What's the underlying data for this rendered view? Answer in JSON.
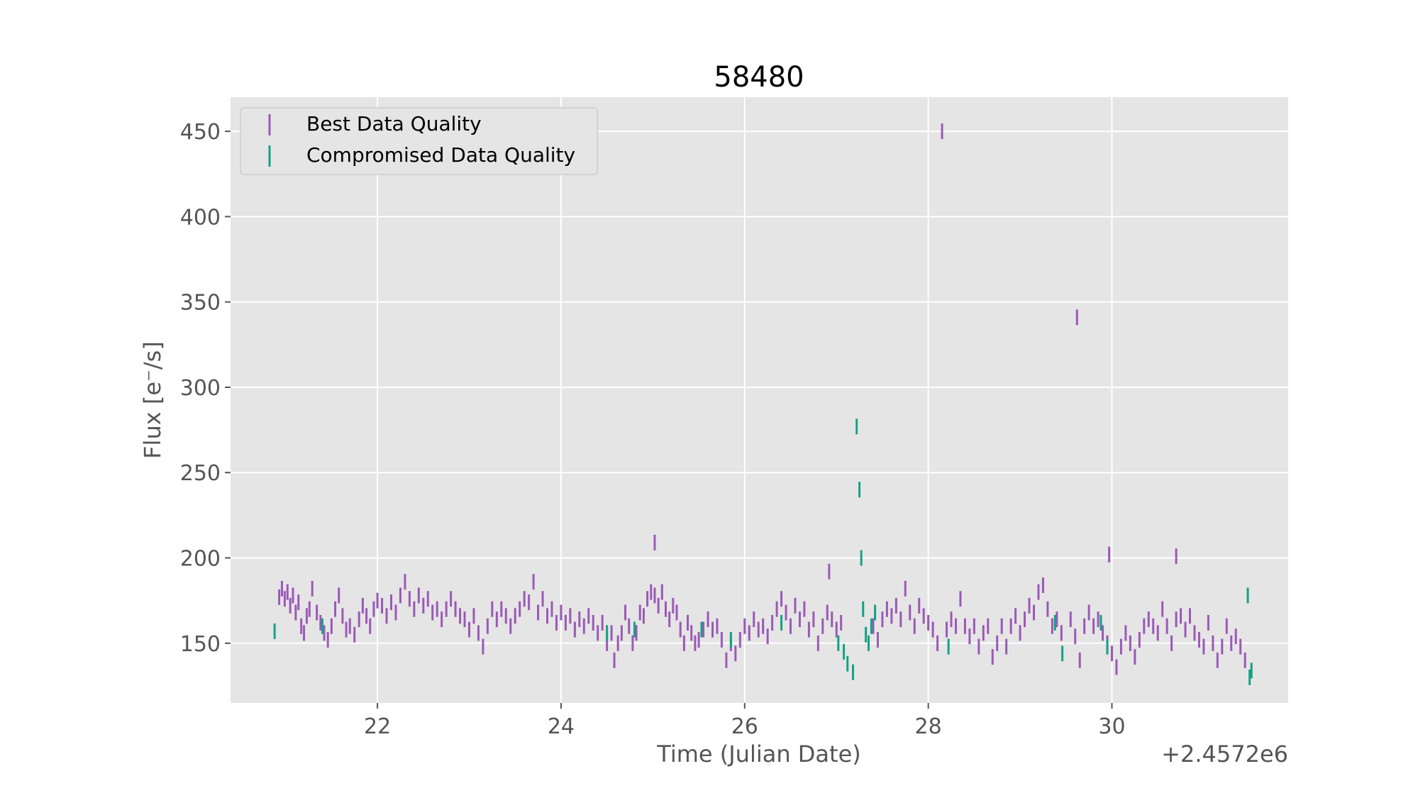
{
  "chart_data": {
    "type": "scatter",
    "title": "58480",
    "xlabel": "Time (Julian Date)",
    "ylabel": "Flux [e$^-$/s]",
    "ylabel_display": "Flux [e⁻/s]",
    "x_offset_label": "+2.4572e6",
    "xlim": [
      20.4,
      31.92
    ],
    "ylim": [
      115,
      470
    ],
    "xticks": [
      22,
      24,
      26,
      28,
      30
    ],
    "xtick_labels": [
      "22",
      "24",
      "26",
      "28",
      "30"
    ],
    "yticks": [
      150,
      200,
      250,
      300,
      350,
      400,
      450
    ],
    "ytick_labels": [
      "150",
      "200",
      "250",
      "300",
      "350",
      "400",
      "450"
    ],
    "grid": true,
    "legend_position": "upper-left",
    "series": [
      {
        "name": "Best Data Quality",
        "color": "#9b59b6",
        "points": [
          [
            20.93,
            177
          ],
          [
            20.96,
            182
          ],
          [
            20.99,
            176
          ],
          [
            21.02,
            180
          ],
          [
            21.05,
            172
          ],
          [
            21.08,
            178
          ],
          [
            21.11,
            168
          ],
          [
            21.14,
            174
          ],
          [
            21.17,
            160
          ],
          [
            21.2,
            156
          ],
          [
            21.23,
            166
          ],
          [
            21.26,
            170
          ],
          [
            21.29,
            182
          ],
          [
            21.34,
            168
          ],
          [
            21.38,
            162
          ],
          [
            21.42,
            156
          ],
          [
            21.46,
            152
          ],
          [
            21.5,
            160
          ],
          [
            21.54,
            170
          ],
          [
            21.58,
            178
          ],
          [
            21.62,
            166
          ],
          [
            21.66,
            158
          ],
          [
            21.7,
            160
          ],
          [
            21.75,
            155
          ],
          [
            21.8,
            164
          ],
          [
            21.84,
            172
          ],
          [
            21.88,
            166
          ],
          [
            21.92,
            160
          ],
          [
            21.96,
            170
          ],
          [
            22.0,
            175
          ],
          [
            22.05,
            172
          ],
          [
            22.1,
            166
          ],
          [
            22.15,
            174
          ],
          [
            22.2,
            168
          ],
          [
            22.25,
            178
          ],
          [
            22.3,
            186
          ],
          [
            22.35,
            176
          ],
          [
            22.4,
            170
          ],
          [
            22.45,
            178
          ],
          [
            22.5,
            172
          ],
          [
            22.55,
            176
          ],
          [
            22.6,
            168
          ],
          [
            22.65,
            170
          ],
          [
            22.7,
            164
          ],
          [
            22.75,
            170
          ],
          [
            22.8,
            176
          ],
          [
            22.85,
            170
          ],
          [
            22.9,
            166
          ],
          [
            22.95,
            164
          ],
          [
            23.0,
            158
          ],
          [
            23.05,
            166
          ],
          [
            23.1,
            156
          ],
          [
            23.15,
            148
          ],
          [
            23.2,
            160
          ],
          [
            23.25,
            170
          ],
          [
            23.3,
            164
          ],
          [
            23.35,
            170
          ],
          [
            23.4,
            166
          ],
          [
            23.45,
            160
          ],
          [
            23.5,
            166
          ],
          [
            23.55,
            170
          ],
          [
            23.6,
            176
          ],
          [
            23.65,
            174
          ],
          [
            23.7,
            186
          ],
          [
            23.75,
            168
          ],
          [
            23.8,
            176
          ],
          [
            23.85,
            166
          ],
          [
            23.9,
            170
          ],
          [
            23.95,
            162
          ],
          [
            24.0,
            168
          ],
          [
            24.05,
            162
          ],
          [
            24.1,
            166
          ],
          [
            24.15,
            158
          ],
          [
            24.2,
            164
          ],
          [
            24.25,
            160
          ],
          [
            24.3,
            166
          ],
          [
            24.35,
            162
          ],
          [
            24.4,
            156
          ],
          [
            24.45,
            162
          ],
          [
            24.5,
            150
          ],
          [
            24.55,
            156
          ],
          [
            24.58,
            140
          ],
          [
            24.62,
            150
          ],
          [
            24.66,
            156
          ],
          [
            24.7,
            168
          ],
          [
            24.74,
            160
          ],
          [
            24.78,
            150
          ],
          [
            24.82,
            156
          ],
          [
            24.86,
            168
          ],
          [
            24.9,
            166
          ],
          [
            24.94,
            176
          ],
          [
            24.98,
            180
          ],
          [
            25.02,
            178
          ],
          [
            25.06,
            172
          ],
          [
            25.1,
            180
          ],
          [
            25.14,
            170
          ],
          [
            25.18,
            164
          ],
          [
            25.22,
            172
          ],
          [
            25.26,
            168
          ],
          [
            25.3,
            158
          ],
          [
            25.34,
            150
          ],
          [
            25.38,
            162
          ],
          [
            25.42,
            156
          ],
          [
            25.46,
            150
          ],
          [
            25.5,
            152
          ],
          [
            25.55,
            158
          ],
          [
            25.6,
            164
          ],
          [
            25.65,
            158
          ],
          [
            25.7,
            160
          ],
          [
            25.75,
            152
          ],
          [
            25.8,
            140
          ],
          [
            25.85,
            150
          ],
          [
            25.9,
            144
          ],
          [
            25.95,
            152
          ],
          [
            26.0,
            160
          ],
          [
            26.05,
            156
          ],
          [
            26.1,
            164
          ],
          [
            26.15,
            158
          ],
          [
            26.2,
            160
          ],
          [
            26.25,
            154
          ],
          [
            26.3,
            162
          ],
          [
            26.35,
            170
          ],
          [
            26.4,
            176
          ],
          [
            26.45,
            168
          ],
          [
            26.5,
            160
          ],
          [
            26.55,
            172
          ],
          [
            26.6,
            164
          ],
          [
            26.65,
            170
          ],
          [
            26.7,
            158
          ],
          [
            26.75,
            164
          ],
          [
            26.8,
            150
          ],
          [
            26.85,
            160
          ],
          [
            26.9,
            168
          ],
          [
            26.95,
            164
          ],
          [
            27.0,
            158
          ],
          [
            27.05,
            162
          ],
          [
            27.4,
            160
          ],
          [
            27.45,
            152
          ],
          [
            27.5,
            164
          ],
          [
            27.55,
            170
          ],
          [
            27.6,
            166
          ],
          [
            27.65,
            172
          ],
          [
            27.7,
            164
          ],
          [
            27.75,
            182
          ],
          [
            27.8,
            168
          ],
          [
            27.85,
            160
          ],
          [
            27.9,
            172
          ],
          [
            27.95,
            166
          ],
          [
            28.0,
            162
          ],
          [
            28.05,
            158
          ],
          [
            28.1,
            150
          ],
          [
            28.2,
            158
          ],
          [
            28.25,
            164
          ],
          [
            28.3,
            160
          ],
          [
            28.35,
            176
          ],
          [
            28.4,
            160
          ],
          [
            28.45,
            154
          ],
          [
            28.5,
            160
          ],
          [
            28.55,
            148
          ],
          [
            28.6,
            156
          ],
          [
            28.65,
            160
          ],
          [
            28.7,
            142
          ],
          [
            28.75,
            150
          ],
          [
            28.8,
            160
          ],
          [
            28.85,
            148
          ],
          [
            28.9,
            160
          ],
          [
            28.95,
            166
          ],
          [
            29.0,
            156
          ],
          [
            29.05,
            164
          ],
          [
            29.1,
            172
          ],
          [
            29.15,
            168
          ],
          [
            29.2,
            180
          ],
          [
            29.25,
            184
          ],
          [
            29.3,
            170
          ],
          [
            29.35,
            160
          ],
          [
            29.4,
            164
          ],
          [
            29.45,
            156
          ],
          [
            29.55,
            164
          ],
          [
            29.6,
            154
          ],
          [
            29.65,
            140
          ],
          [
            29.7,
            160
          ],
          [
            29.75,
            168
          ],
          [
            29.8,
            160
          ],
          [
            29.85,
            164
          ],
          [
            29.9,
            156
          ],
          [
            29.95,
            150
          ],
          [
            30.0,
            144
          ],
          [
            30.05,
            136
          ],
          [
            30.1,
            148
          ],
          [
            30.15,
            156
          ],
          [
            30.2,
            150
          ],
          [
            30.25,
            142
          ],
          [
            30.3,
            152
          ],
          [
            30.35,
            160
          ],
          [
            30.4,
            164
          ],
          [
            30.45,
            160
          ],
          [
            30.5,
            156
          ],
          [
            30.55,
            170
          ],
          [
            30.6,
            160
          ],
          [
            30.65,
            150
          ],
          [
            30.7,
            164
          ],
          [
            30.75,
            166
          ],
          [
            30.8,
            158
          ],
          [
            30.85,
            166
          ],
          [
            30.9,
            156
          ],
          [
            30.95,
            152
          ],
          [
            31.0,
            148
          ],
          [
            31.05,
            162
          ],
          [
            31.1,
            150
          ],
          [
            31.15,
            140
          ],
          [
            31.2,
            148
          ],
          [
            31.25,
            160
          ],
          [
            31.3,
            150
          ],
          [
            31.35,
            154
          ],
          [
            31.4,
            148
          ],
          [
            31.45,
            140
          ],
          [
            25.02,
            209
          ],
          [
            26.92,
            192
          ],
          [
            28.15,
            450
          ],
          [
            29.62,
            341
          ],
          [
            29.97,
            202
          ],
          [
            30.7,
            201
          ]
        ]
      },
      {
        "name": "Compromised Data Quality",
        "color": "#16a085",
        "points": [
          [
            20.88,
            157
          ],
          [
            21.4,
            160
          ],
          [
            24.5,
            156
          ],
          [
            24.8,
            158
          ],
          [
            25.53,
            158
          ],
          [
            25.85,
            152
          ],
          [
            26.4,
            162
          ],
          [
            27.02,
            150
          ],
          [
            27.08,
            145
          ],
          [
            27.12,
            138
          ],
          [
            27.18,
            133
          ],
          [
            27.22,
            277
          ],
          [
            27.25,
            240
          ],
          [
            27.27,
            200
          ],
          [
            27.29,
            170
          ],
          [
            27.32,
            155
          ],
          [
            27.35,
            150
          ],
          [
            27.38,
            160
          ],
          [
            27.42,
            168
          ],
          [
            28.22,
            148
          ],
          [
            29.38,
            162
          ],
          [
            29.46,
            144
          ],
          [
            29.88,
            162
          ],
          [
            29.95,
            148
          ],
          [
            31.48,
            178
          ],
          [
            31.5,
            130
          ],
          [
            31.52,
            134
          ]
        ]
      }
    ]
  }
}
